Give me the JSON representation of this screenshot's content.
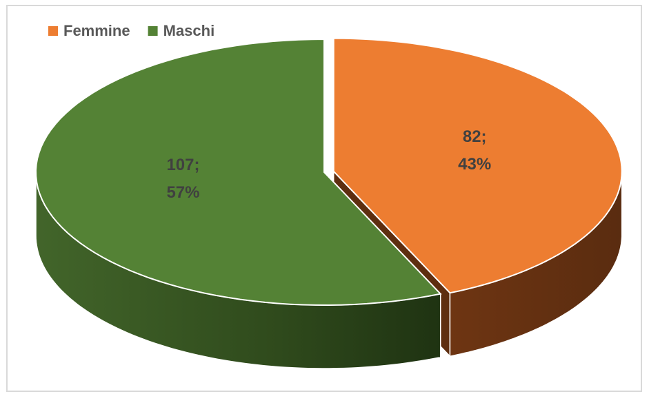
{
  "chart_data": {
    "type": "pie3d",
    "categories": [
      "Femmine",
      "Maschi"
    ],
    "values": [
      82,
      107
    ],
    "value_labels": [
      "82;\n43%",
      "107;\n57%"
    ],
    "colors": [
      "#ed7d31",
      "#548235"
    ],
    "legend": "top-left"
  }
}
